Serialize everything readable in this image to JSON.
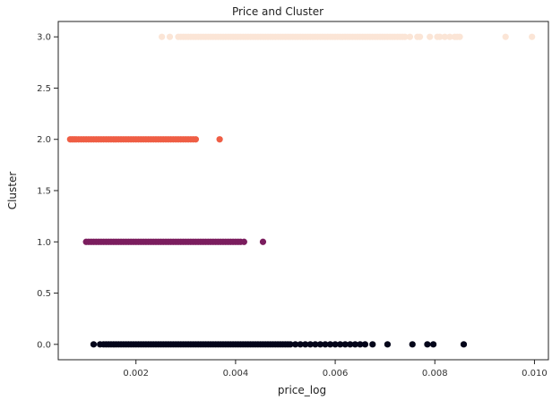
{
  "chart_data": {
    "type": "scatter",
    "title": "Price and Cluster",
    "xlabel": "price_log",
    "ylabel": "Cluster",
    "xlim": [
      0.00044,
      0.01028
    ],
    "ylim": [
      -0.15,
      3.15
    ],
    "xticks": [
      0.002,
      0.004,
      0.006,
      0.008,
      0.01
    ],
    "xtick_labels": [
      "0.002",
      "0.004",
      "0.006",
      "0.008",
      "0.010"
    ],
    "yticks": [
      0.0,
      0.5,
      1.0,
      1.5,
      2.0,
      2.5,
      3.0
    ],
    "ytick_labels": [
      "0.0",
      "0.5",
      "1.0",
      "1.5",
      "2.0",
      "2.5",
      "3.0"
    ],
    "grid": false,
    "series": [
      {
        "cluster": 0,
        "color": "#03051a",
        "x": [
          0.00115,
          0.00128,
          0.00135,
          0.0014,
          0.00145,
          0.0015,
          0.00155,
          0.0016,
          0.00165,
          0.0017,
          0.00175,
          0.0018,
          0.00185,
          0.0019,
          0.00195,
          0.002,
          0.00205,
          0.0021,
          0.00215,
          0.0022,
          0.00225,
          0.0023,
          0.00235,
          0.0024,
          0.00245,
          0.0025,
          0.00255,
          0.0026,
          0.00265,
          0.0027,
          0.00275,
          0.0028,
          0.00285,
          0.0029,
          0.00295,
          0.003,
          0.00305,
          0.0031,
          0.00315,
          0.0032,
          0.00325,
          0.0033,
          0.00335,
          0.0034,
          0.00345,
          0.0035,
          0.00355,
          0.0036,
          0.00365,
          0.0037,
          0.00375,
          0.0038,
          0.00385,
          0.0039,
          0.00395,
          0.004,
          0.00405,
          0.0041,
          0.00415,
          0.0042,
          0.00425,
          0.0043,
          0.00435,
          0.0044,
          0.00445,
          0.0045,
          0.00455,
          0.0046,
          0.00465,
          0.0047,
          0.00475,
          0.0048,
          0.00485,
          0.0049,
          0.00495,
          0.005,
          0.00505,
          0.0051,
          0.0052,
          0.0053,
          0.0054,
          0.0055,
          0.0056,
          0.0057,
          0.0058,
          0.0059,
          0.006,
          0.0061,
          0.0062,
          0.0063,
          0.0064,
          0.0065,
          0.0066,
          0.00675,
          0.00705,
          0.00755,
          0.00785,
          0.00797,
          0.00858
        ],
        "y": 0
      },
      {
        "cluster": 1,
        "color": "#7b1d5e",
        "x": [
          0.001,
          0.00105,
          0.0011,
          0.00115,
          0.0012,
          0.00125,
          0.0013,
          0.00135,
          0.0014,
          0.00145,
          0.0015,
          0.00155,
          0.0016,
          0.00165,
          0.0017,
          0.00175,
          0.0018,
          0.00185,
          0.0019,
          0.00195,
          0.002,
          0.00205,
          0.0021,
          0.00215,
          0.0022,
          0.00225,
          0.0023,
          0.00235,
          0.0024,
          0.00245,
          0.0025,
          0.00255,
          0.0026,
          0.00265,
          0.0027,
          0.00275,
          0.0028,
          0.00285,
          0.0029,
          0.00295,
          0.003,
          0.00305,
          0.0031,
          0.00315,
          0.0032,
          0.00325,
          0.0033,
          0.00335,
          0.0034,
          0.00345,
          0.0035,
          0.00355,
          0.0036,
          0.00365,
          0.0037,
          0.00375,
          0.0038,
          0.00385,
          0.0039,
          0.00395,
          0.004,
          0.00405,
          0.0041,
          0.00417,
          0.00455
        ],
        "y": 1
      },
      {
        "cluster": 2,
        "color": "#ef5e45",
        "x": [
          0.00068,
          0.00072,
          0.00076,
          0.0008,
          0.00085,
          0.0009,
          0.00095,
          0.001,
          0.00105,
          0.0011,
          0.00115,
          0.0012,
          0.00125,
          0.0013,
          0.00135,
          0.0014,
          0.00145,
          0.0015,
          0.00155,
          0.0016,
          0.00165,
          0.0017,
          0.00175,
          0.0018,
          0.00185,
          0.0019,
          0.00195,
          0.002,
          0.00205,
          0.0021,
          0.00215,
          0.0022,
          0.00225,
          0.0023,
          0.00235,
          0.0024,
          0.00245,
          0.0025,
          0.00255,
          0.0026,
          0.00265,
          0.0027,
          0.00275,
          0.0028,
          0.00285,
          0.0029,
          0.00295,
          0.003,
          0.00305,
          0.0031,
          0.00315,
          0.0032,
          0.00368
        ],
        "y": 2
      },
      {
        "cluster": 3,
        "color": "#fbe5d6",
        "x": [
          0.00252,
          0.00268,
          0.00285,
          0.0029,
          0.00295,
          0.003,
          0.00305,
          0.0031,
          0.00315,
          0.0032,
          0.00325,
          0.0033,
          0.00335,
          0.0034,
          0.00345,
          0.0035,
          0.00355,
          0.0036,
          0.00365,
          0.0037,
          0.00375,
          0.0038,
          0.00385,
          0.0039,
          0.00395,
          0.004,
          0.00405,
          0.0041,
          0.00415,
          0.0042,
          0.00425,
          0.0043,
          0.00435,
          0.0044,
          0.00445,
          0.0045,
          0.00455,
          0.0046,
          0.00465,
          0.0047,
          0.00475,
          0.0048,
          0.00485,
          0.0049,
          0.00495,
          0.005,
          0.00505,
          0.0051,
          0.00515,
          0.0052,
          0.00525,
          0.0053,
          0.00535,
          0.0054,
          0.00545,
          0.0055,
          0.00555,
          0.0056,
          0.00565,
          0.0057,
          0.00575,
          0.0058,
          0.00585,
          0.0059,
          0.00595,
          0.006,
          0.00605,
          0.0061,
          0.00615,
          0.0062,
          0.00625,
          0.0063,
          0.00635,
          0.0064,
          0.00645,
          0.0065,
          0.00655,
          0.0066,
          0.00665,
          0.0067,
          0.00675,
          0.0068,
          0.00685,
          0.0069,
          0.00695,
          0.007,
          0.00705,
          0.0071,
          0.00715,
          0.0072,
          0.00725,
          0.0073,
          0.00735,
          0.0074,
          0.0075,
          0.00765,
          0.0077,
          0.0079,
          0.00805,
          0.0081,
          0.0082,
          0.0083,
          0.0084,
          0.00845,
          0.0085,
          0.00942,
          0.00995
        ],
        "y": 3
      }
    ]
  }
}
